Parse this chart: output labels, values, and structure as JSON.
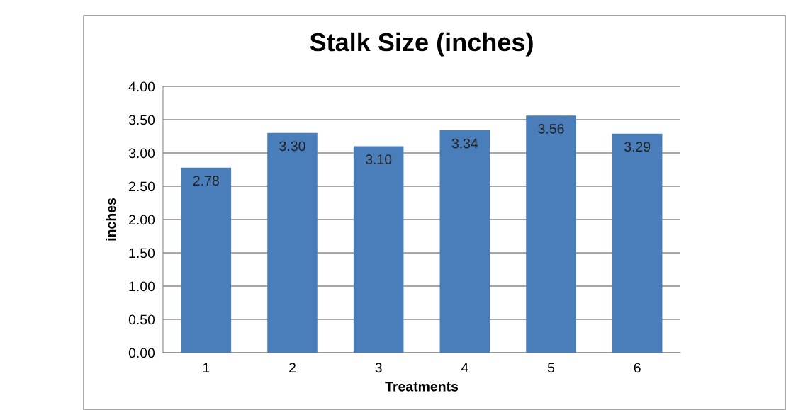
{
  "chart_data": {
    "type": "bar",
    "title": "Stalk Size (inches)",
    "xlabel": "Treatments",
    "ylabel": "inches",
    "categories": [
      "1",
      "2",
      "3",
      "4",
      "5",
      "6"
    ],
    "values": [
      2.78,
      3.3,
      3.1,
      3.34,
      3.56,
      3.29
    ],
    "value_labels": [
      "2.78",
      "3.30",
      "3.10",
      "3.34",
      "3.56",
      "3.29"
    ],
    "color": "#4a7ebb",
    "ylim": [
      0,
      4
    ],
    "yticks": [
      {
        "value": 0,
        "label": "0.00"
      },
      {
        "value": 0.5,
        "label": "0.50"
      },
      {
        "value": 1,
        "label": "1.00"
      },
      {
        "value": 1.5,
        "label": "1.50"
      },
      {
        "value": 2,
        "label": "2.00"
      },
      {
        "value": 2.5,
        "label": "2.50"
      },
      {
        "value": 3,
        "label": "3.00"
      },
      {
        "value": 3.5,
        "label": "3.50"
      },
      {
        "value": 4,
        "label": "4.00"
      }
    ],
    "grid": "y",
    "legend": false
  }
}
